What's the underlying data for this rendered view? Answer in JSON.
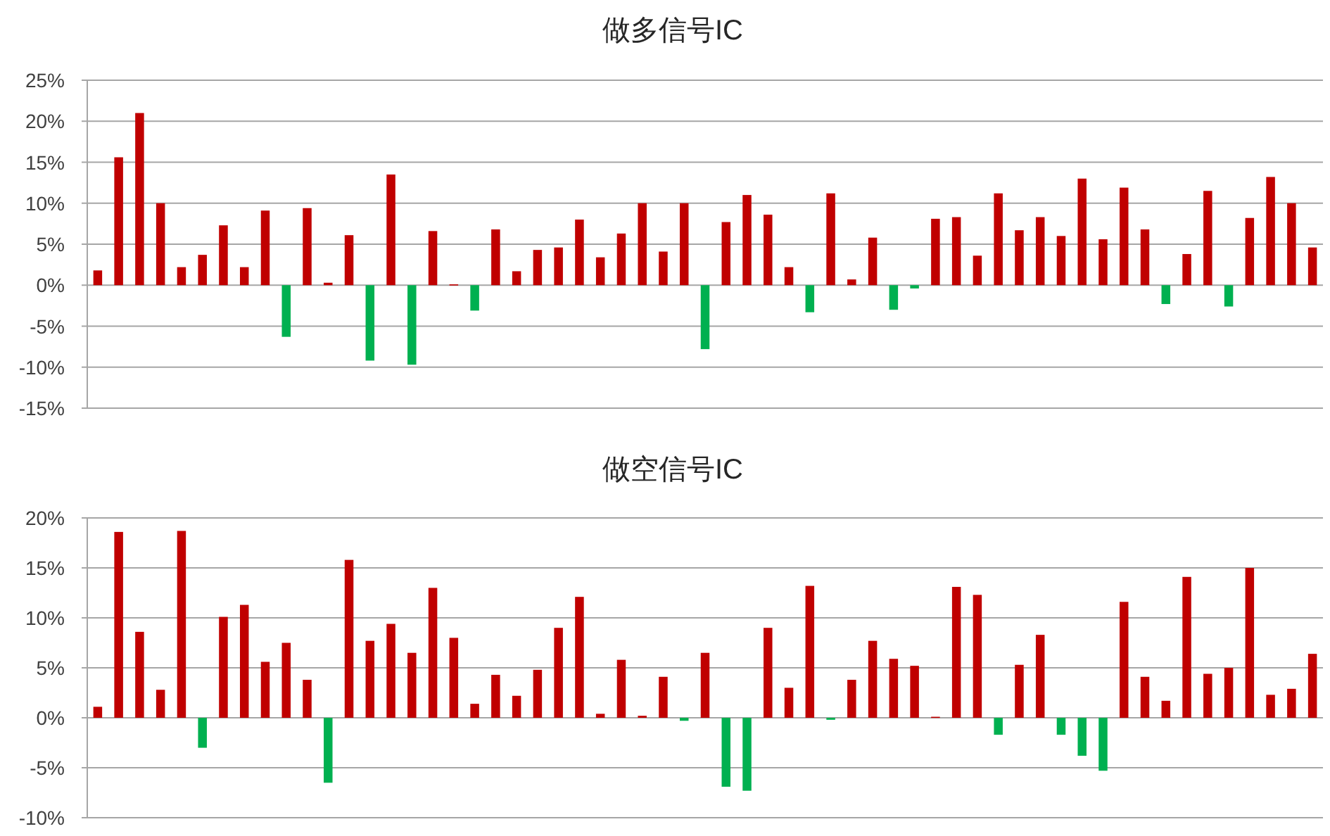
{
  "chart_data": [
    {
      "type": "bar",
      "title": "做多信号IC",
      "categories": [
        null,
        null,
        null,
        null,
        null,
        null,
        null,
        null,
        null,
        null,
        null,
        null,
        null,
        null,
        null,
        null,
        null,
        null,
        null,
        null,
        null,
        null,
        null,
        null,
        null,
        null,
        null,
        null,
        null,
        null,
        null,
        null,
        null,
        null,
        null,
        null,
        null,
        null,
        null,
        null,
        null,
        null,
        null,
        null,
        null,
        null,
        null,
        null,
        null,
        null,
        null,
        null,
        null,
        null,
        null,
        null,
        null,
        null,
        null
      ],
      "values": [
        1.8,
        15.6,
        21,
        10,
        2.2,
        3.7,
        7.3,
        2.2,
        9.1,
        -6.3,
        9.4,
        0.3,
        6.1,
        -9.2,
        13.5,
        -9.7,
        6.6,
        0.1,
        -3.1,
        6.8,
        1.7,
        4.3,
        4.6,
        8.0,
        3.4,
        6.3,
        10.0,
        4.1,
        10.0,
        -7.8,
        7.7,
        11.0,
        8.6,
        2.2,
        -3.3,
        11.2,
        0.7,
        5.8,
        -3.0,
        -0.4,
        8.1,
        8.3,
        3.6,
        11.2,
        6.7,
        8.3,
        6.0,
        13.0,
        5.6,
        11.9,
        6.8,
        -2.3,
        3.8,
        11.5,
        -2.6,
        8.2,
        13.2,
        10.0,
        4.6
      ],
      "colors": [
        "#c00000",
        "#c00000",
        "#c00000",
        "#c00000",
        "#c00000",
        "#c00000",
        "#c00000",
        "#c00000",
        "#c00000",
        "#00b050",
        "#c00000",
        "#c00000",
        "#c00000",
        "#00b050",
        "#c00000",
        "#00b050",
        "#c00000",
        "#c00000",
        "#00b050",
        "#c00000",
        "#c00000",
        "#c00000",
        "#c00000",
        "#c00000",
        "#c00000",
        "#c00000",
        "#c00000",
        "#c00000",
        "#c00000",
        "#00b050",
        "#c00000",
        "#c00000",
        "#c00000",
        "#c00000",
        "#00b050",
        "#c00000",
        "#c00000",
        "#c00000",
        "#00b050",
        "#00b050",
        "#c00000",
        "#c00000",
        "#c00000",
        "#c00000",
        "#c00000",
        "#c00000",
        "#c00000",
        "#c00000",
        "#c00000",
        "#c00000",
        "#c00000",
        "#00b050",
        "#c00000",
        "#c00000",
        "#00b050",
        "#c00000",
        "#c00000",
        "#c00000",
        "#c00000"
      ],
      "ylim": [
        -15,
        25
      ],
      "yticks": [
        {
          "value": -15,
          "label": "-15%"
        },
        {
          "value": -10,
          "label": "-10%"
        },
        {
          "value": -5,
          "label": "-5%"
        },
        {
          "value": 0,
          "label": "0%"
        },
        {
          "value": 5,
          "label": "5%"
        },
        {
          "value": 10,
          "label": "10%"
        },
        {
          "value": 15,
          "label": "15%"
        },
        {
          "value": 20,
          "label": "20%"
        },
        {
          "value": 25,
          "label": "25%"
        }
      ],
      "grid": "y"
    },
    {
      "type": "bar",
      "title": "做空信号IC",
      "categories": [
        null,
        null,
        null,
        null,
        null,
        null,
        null,
        null,
        null,
        null,
        null,
        null,
        null,
        null,
        null,
        null,
        null,
        null,
        null,
        null,
        null,
        null,
        null,
        null,
        null,
        null,
        null,
        null,
        null,
        null,
        null,
        null,
        null,
        null,
        null,
        null,
        null,
        null,
        null,
        null,
        null,
        null,
        null,
        null,
        null,
        null,
        null,
        null,
        null,
        null,
        null,
        null,
        null,
        null,
        null,
        null,
        null,
        null,
        null
      ],
      "values": [
        1.1,
        18.6,
        8.6,
        2.8,
        18.7,
        -3.0,
        10.1,
        11.3,
        5.6,
        7.5,
        3.8,
        -6.5,
        15.8,
        7.7,
        9.4,
        6.5,
        13.0,
        8.0,
        1.4,
        4.3,
        2.2,
        4.8,
        9.0,
        12.1,
        0.4,
        5.8,
        0.2,
        4.1,
        -0.3,
        6.5,
        -6.9,
        -7.3,
        9.0,
        3.0,
        13.2,
        -0.2,
        3.8,
        7.7,
        5.9,
        5.2,
        0.1,
        13.1,
        12.3,
        -1.7,
        5.3,
        8.3,
        -1.7,
        -3.8,
        -5.3,
        11.6,
        4.1,
        1.7,
        14.1,
        4.4,
        5.0,
        15.0,
        2.3,
        2.9,
        6.4
      ],
      "colors": [
        "#c00000",
        "#c00000",
        "#c00000",
        "#c00000",
        "#c00000",
        "#00b050",
        "#c00000",
        "#c00000",
        "#c00000",
        "#c00000",
        "#c00000",
        "#00b050",
        "#c00000",
        "#c00000",
        "#c00000",
        "#c00000",
        "#c00000",
        "#c00000",
        "#c00000",
        "#c00000",
        "#c00000",
        "#c00000",
        "#c00000",
        "#c00000",
        "#c00000",
        "#c00000",
        "#c00000",
        "#c00000",
        "#00b050",
        "#c00000",
        "#00b050",
        "#00b050",
        "#c00000",
        "#c00000",
        "#c00000",
        "#00b050",
        "#c00000",
        "#c00000",
        "#c00000",
        "#c00000",
        "#c00000",
        "#c00000",
        "#c00000",
        "#00b050",
        "#c00000",
        "#c00000",
        "#00b050",
        "#00b050",
        "#00b050",
        "#c00000",
        "#c00000",
        "#c00000",
        "#c00000",
        "#c00000",
        "#c00000",
        "#c00000",
        "#c00000",
        "#c00000",
        "#c00000"
      ],
      "ylim": [
        -10,
        20
      ],
      "yticks": [
        {
          "value": -10,
          "label": "-10%"
        },
        {
          "value": -5,
          "label": "-5%"
        },
        {
          "value": 0,
          "label": "0%"
        },
        {
          "value": 5,
          "label": "5%"
        },
        {
          "value": 10,
          "label": "10%"
        },
        {
          "value": 15,
          "label": "15%"
        },
        {
          "value": 20,
          "label": "20%"
        }
      ],
      "grid": "y"
    }
  ]
}
